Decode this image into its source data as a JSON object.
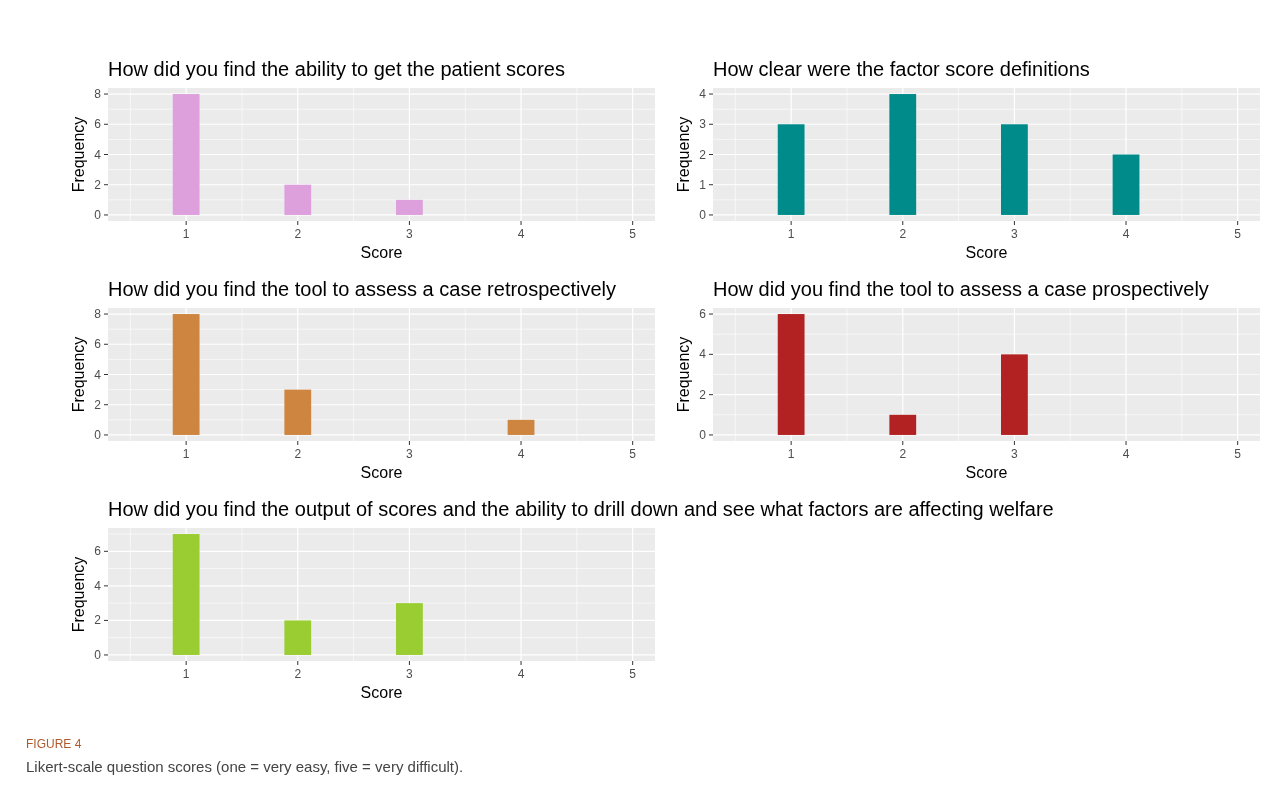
{
  "chart_data": [
    {
      "type": "bar",
      "title": "How did you find the ability to get the patient scores",
      "xlabel": "Score",
      "ylabel": "Frequency",
      "x": [
        1,
        2,
        3,
        4,
        5
      ],
      "values": [
        8,
        2,
        1,
        0,
        0
      ],
      "color": "#dda0dd",
      "xlim": [
        0.3,
        5.2
      ],
      "xticks": [
        1,
        2,
        3,
        4,
        5
      ],
      "ylim": [
        -0.4,
        8.4
      ],
      "yticks": [
        0,
        2,
        4,
        6,
        8
      ],
      "grid": true
    },
    {
      "type": "bar",
      "title": "How clear were the factor score definitions",
      "xlabel": "Score",
      "ylabel": "Frequency",
      "x": [
        1,
        2,
        3,
        4,
        5
      ],
      "values": [
        3,
        4,
        3,
        2,
        0
      ],
      "color": "#008b8b",
      "xlim": [
        0.3,
        5.2
      ],
      "xticks": [
        1,
        2,
        3,
        4,
        5
      ],
      "ylim": [
        -0.2,
        4.2
      ],
      "yticks": [
        0,
        1,
        2,
        3,
        4
      ],
      "grid": true
    },
    {
      "type": "bar",
      "title": "How did you find the tool to assess a case retrospectively",
      "xlabel": "Score",
      "ylabel": "Frequency",
      "x": [
        1,
        2,
        3,
        4,
        5
      ],
      "values": [
        8,
        3,
        0,
        1,
        0
      ],
      "color": "#cd853f",
      "xlim": [
        0.3,
        5.2
      ],
      "xticks": [
        1,
        2,
        3,
        4,
        5
      ],
      "ylim": [
        -0.4,
        8.4
      ],
      "yticks": [
        0,
        2,
        4,
        6,
        8
      ],
      "grid": true
    },
    {
      "type": "bar",
      "title": "How did you find the tool to assess a case prospectively",
      "xlabel": "Score",
      "ylabel": "Frequency",
      "x": [
        1,
        2,
        3,
        4,
        5
      ],
      "values": [
        6,
        1,
        4,
        0,
        0
      ],
      "color": "#b22222",
      "xlim": [
        0.3,
        5.2
      ],
      "xticks": [
        1,
        2,
        3,
        4,
        5
      ],
      "ylim": [
        -0.3,
        6.3
      ],
      "yticks": [
        0,
        2,
        4,
        6
      ],
      "grid": true
    },
    {
      "type": "bar",
      "title": "How did you find the output of scores and the ability to drill down and see what factors are affecting welfare",
      "xlabel": "Score",
      "ylabel": "Frequency",
      "x": [
        1,
        2,
        3,
        4,
        5
      ],
      "values": [
        7,
        2,
        3,
        0,
        0
      ],
      "color": "#9acd32",
      "xlim": [
        0.3,
        5.2
      ],
      "xticks": [
        1,
        2,
        3,
        4,
        5
      ],
      "ylim": [
        -0.35,
        7.35
      ],
      "yticks": [
        0,
        2,
        4,
        6
      ],
      "grid": true
    },
    {
      "type": "other",
      "title": "FIGURE 4",
      "annotations": [
        "Likert-scale question scores (one = very easy, five = very difficult)."
      ]
    }
  ]
}
